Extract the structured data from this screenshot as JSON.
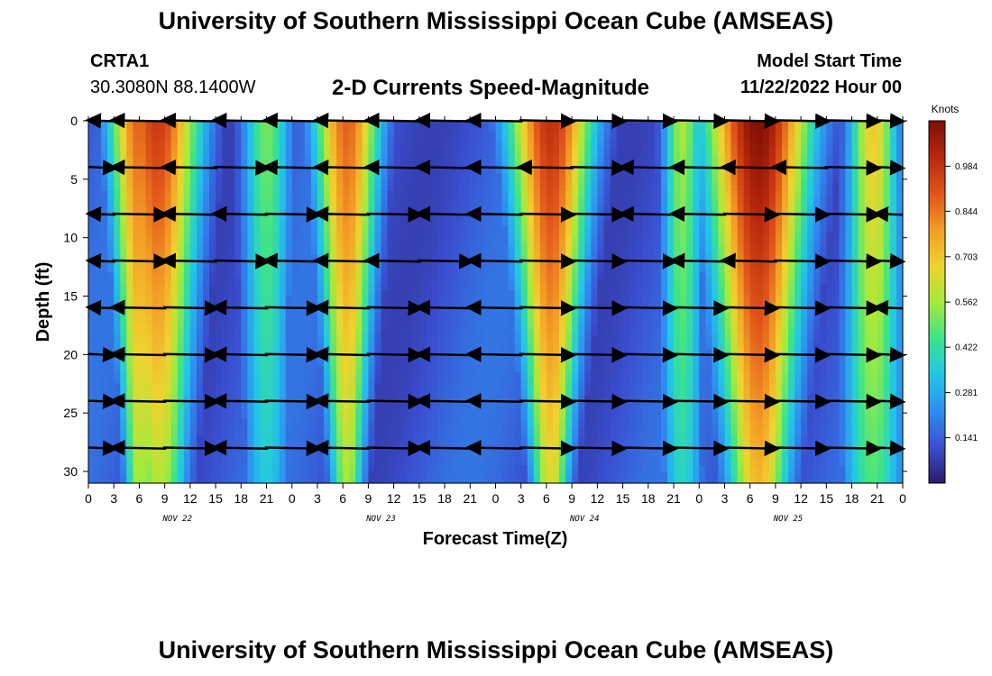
{
  "header": {
    "title": "University of Southern Mississippi Ocean Cube (AMSEAS)",
    "station": "CRTA1",
    "coords": "30.3080N  88.1400W",
    "subtitle": "2-D Currents Speed-Magnitude",
    "model_start_label": "Model Start Time",
    "model_start_value": "11/22/2022 Hour 00"
  },
  "footer": {
    "title": "University of Southern Mississippi Ocean Cube (AMSEAS)"
  },
  "chart_data": {
    "type": "heatmap",
    "title": "2-D Currents Speed-Magnitude",
    "xlabel": "Forecast Time(Z)",
    "ylabel": "Depth (ft)",
    "x_range_hours": [
      0,
      96
    ],
    "x_tick_labels": [
      "0",
      "3",
      "6",
      "9",
      "12",
      "15",
      "18",
      "21",
      "0",
      "3",
      "6",
      "9",
      "12",
      "15",
      "18",
      "21",
      "0",
      "3",
      "6",
      "9",
      "12",
      "15",
      "18",
      "21",
      "0",
      "3",
      "6",
      "9",
      "12",
      "15",
      "18",
      "21",
      "0"
    ],
    "date_labels": [
      {
        "text": "NOV 22",
        "hour": 10.5
      },
      {
        "text": "NOV 23",
        "hour": 34.5
      },
      {
        "text": "NOV 24",
        "hour": 58.5
      },
      {
        "text": "NOV 25",
        "hour": 82.5
      }
    ],
    "ylim": [
      0,
      31
    ],
    "y_ticks": [
      0,
      5,
      10,
      15,
      20,
      25,
      30
    ],
    "y_inverted": true,
    "colorbar": {
      "label": "Knots",
      "range": [
        0,
        1.125
      ],
      "ticks": [
        0.141,
        0.281,
        0.422,
        0.562,
        0.703,
        0.844,
        0.984
      ],
      "colors": [
        "#2b1a6b",
        "#3a4fd0",
        "#2f8ef0",
        "#22c7e6",
        "#3ce38a",
        "#a6ea3a",
        "#f0d22f",
        "#f39c25",
        "#e0541a",
        "#b8280c",
        "#7d0f05"
      ]
    },
    "speed_peaks": [
      {
        "hour": 6.0,
        "peak": 0.86,
        "top_width": 2.6,
        "bottom_width": 1.2
      },
      {
        "hour": 30.5,
        "peak": 0.86,
        "top_width": 2.8,
        "bottom_width": 1.4
      },
      {
        "hour": 8.5,
        "peak": 0.88,
        "top_width": 3.5,
        "bottom_width": 2.2
      },
      {
        "hour": 21.0,
        "peak": 0.5,
        "top_width": 2.0,
        "bottom_width": 2.0
      },
      {
        "hour": 54.5,
        "peak": 0.97,
        "top_width": 3.6,
        "bottom_width": 1.6
      },
      {
        "hour": 79.0,
        "peak": 1.1,
        "top_width": 4.4,
        "bottom_width": 2.6
      },
      {
        "hour": 92.5,
        "peak": 0.68,
        "top_width": 2.0,
        "bottom_width": 2.6
      },
      {
        "hour": 70.0,
        "peak": 0.55,
        "top_width": 1.6,
        "bottom_width": 1.8
      }
    ],
    "arrow_depths": [
      0,
      4,
      8,
      12,
      16,
      20,
      24,
      28
    ],
    "arrow_hours": [
      0,
      6,
      12,
      18,
      24,
      30,
      36,
      42,
      48,
      54,
      60,
      66,
      72,
      78,
      84,
      90,
      96
    ],
    "arrow_direction": [
      [
        -1,
        -1,
        -1,
        -1,
        -1,
        -1,
        -1,
        -1,
        -1,
        1,
        1,
        1,
        1,
        1,
        1,
        1,
        1
      ],
      [
        1,
        -1,
        -1,
        1,
        -1,
        -1,
        -1,
        -1,
        -1,
        -1,
        1,
        -1,
        -1,
        -1,
        -1,
        1,
        1
      ],
      [
        -1,
        1,
        -1,
        -1,
        1,
        -1,
        1,
        -1,
        -1,
        1,
        1,
        -1,
        -1,
        1,
        1,
        1,
        -1
      ],
      [
        -1,
        1,
        -1,
        1,
        -1,
        -1,
        -1,
        1,
        -1,
        1,
        1,
        1,
        -1,
        -1,
        1,
        1,
        1
      ],
      [
        -1,
        -1,
        1,
        -1,
        1,
        -1,
        1,
        -1,
        -1,
        1,
        1,
        1,
        1,
        1,
        1,
        1,
        -1
      ],
      [
        1,
        -1,
        1,
        -1,
        1,
        -1,
        1,
        -1,
        -1,
        1,
        1,
        1,
        1,
        1,
        1,
        1,
        1
      ],
      [
        1,
        -1,
        1,
        -1,
        1,
        -1,
        1,
        -1,
        -1,
        1,
        1,
        1,
        1,
        1,
        1,
        1,
        1
      ],
      [
        1,
        -1,
        1,
        -1,
        1,
        -1,
        1,
        -1,
        -1,
        1,
        1,
        1,
        1,
        1,
        1,
        1,
        1
      ]
    ]
  }
}
